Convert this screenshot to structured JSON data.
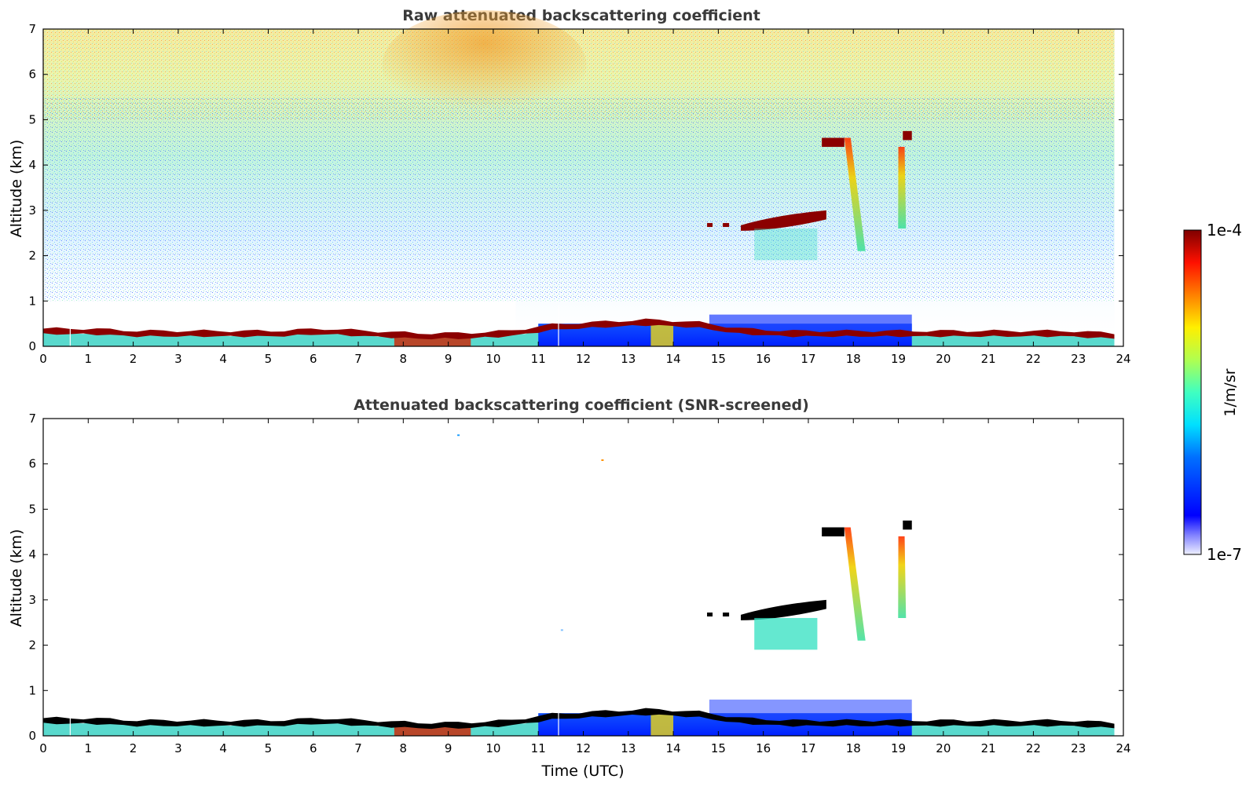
{
  "chart_data": [
    {
      "type": "heatmap",
      "title": "Raw attenuated backscattering coefficient",
      "xlabel": "",
      "ylabel": "Altitude (km)",
      "xlim": [
        0,
        24
      ],
      "ylim": [
        0,
        7
      ],
      "x_ticks": [
        "0",
        "1",
        "2",
        "3",
        "4",
        "5",
        "6",
        "7",
        "8",
        "9",
        "10",
        "11",
        "12",
        "13",
        "14",
        "15",
        "16",
        "17",
        "18",
        "19",
        "20",
        "21",
        "22",
        "23",
        "24"
      ],
      "y_ticks": [
        "0",
        "1",
        "2",
        "3",
        "4",
        "5",
        "6",
        "7"
      ],
      "data_end_time": 23.8,
      "features": [
        {
          "name": "boundary layer top",
          "t_start": 0,
          "t_end": 23.8,
          "alt_km": [
            0.35,
            0.35,
            0.3,
            0.3,
            0.3,
            0.3,
            0.35,
            0.3,
            0.25,
            0.25,
            0.3,
            0.45,
            0.5,
            0.55,
            0.5,
            0.35,
            0.3,
            0.3,
            0.3,
            0.3,
            0.3,
            0.3,
            0.3,
            0.25
          ]
        },
        {
          "name": "mid-level cloud layer",
          "t_start": 15.5,
          "t_end": 17.4,
          "alt_km": 2.75
        },
        {
          "name": "upper cloud",
          "t_start": 17.3,
          "t_end": 17.8,
          "alt_km": 4.5
        },
        {
          "name": "upper cloud",
          "t_start": 19.1,
          "t_end": 19.3,
          "alt_km": 4.65
        },
        {
          "name": "fall streak",
          "t_start": 17.8,
          "t_end": 18.2,
          "alt_km_top": 4.6,
          "alt_km_bottom": 2.1
        },
        {
          "name": "fall streak",
          "t_start": 19.0,
          "t_end": 19.1,
          "alt_km_top": 4.4,
          "alt_km_bottom": 2.6
        }
      ]
    },
    {
      "type": "heatmap",
      "title": "Attenuated backscattering coefficient (SNR-screened)",
      "xlabel": "Time (UTC)",
      "ylabel": "Altitude (km)",
      "xlim": [
        0,
        24
      ],
      "ylim": [
        0,
        7
      ],
      "x_ticks": [
        "0",
        "1",
        "2",
        "3",
        "4",
        "5",
        "6",
        "7",
        "8",
        "9",
        "10",
        "11",
        "12",
        "13",
        "14",
        "15",
        "16",
        "17",
        "18",
        "19",
        "20",
        "21",
        "22",
        "23",
        "24"
      ],
      "y_ticks": [
        "0",
        "1",
        "2",
        "3",
        "4",
        "5",
        "6",
        "7"
      ],
      "data_end_time": 23.8,
      "note_colors": {
        "saturated": "#000000"
      }
    }
  ],
  "colorbar": {
    "label": "1/m/sr",
    "max_label": "1e-4",
    "min_label": "1e-7",
    "scale": "log",
    "colormap": "jet"
  },
  "colors": {
    "background_signal": "#ffffff",
    "low": "#0000ff",
    "high": "#7f0000"
  }
}
